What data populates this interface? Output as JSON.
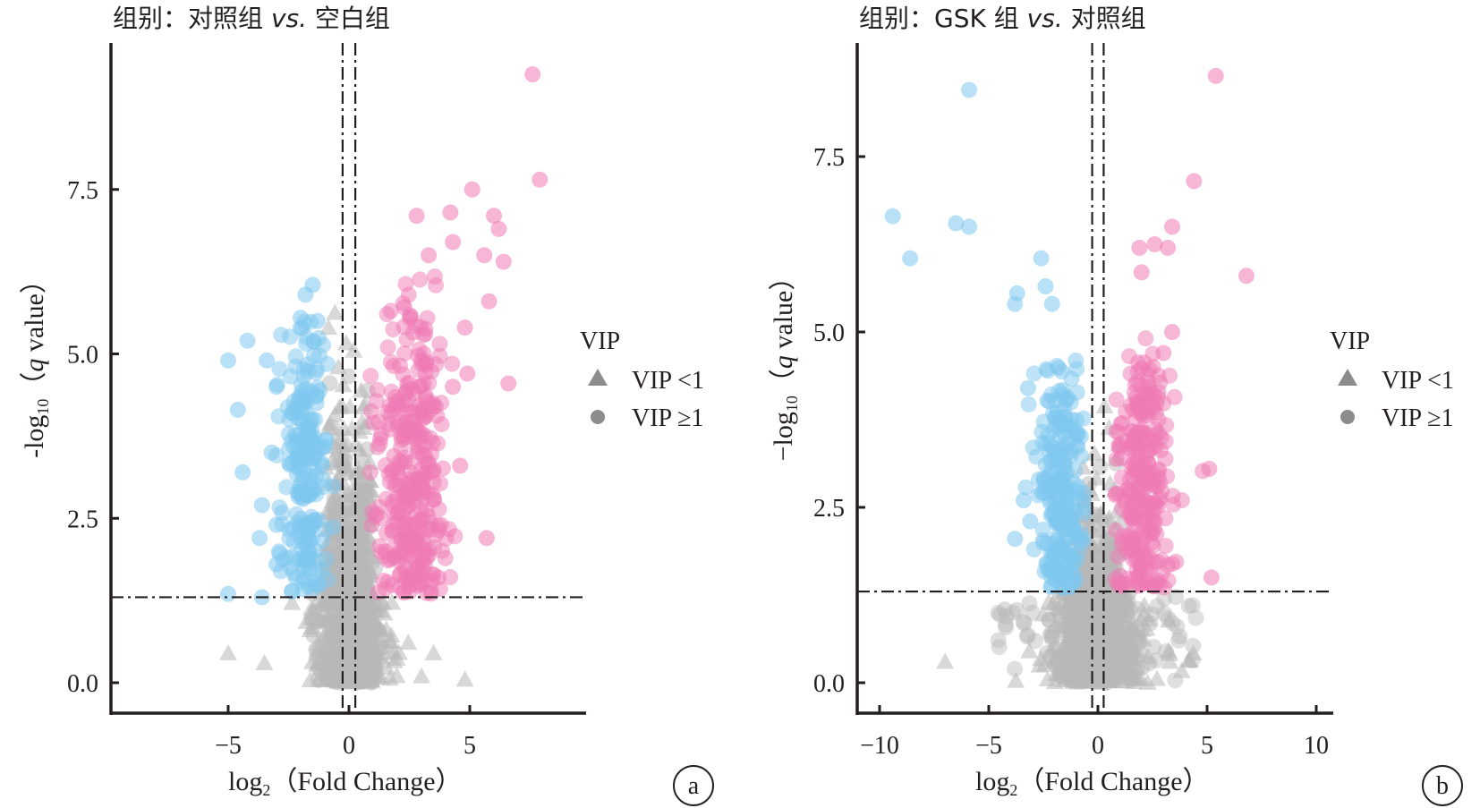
{
  "chart_data": [
    {
      "type": "scatter",
      "panel_label": "a",
      "title_prefix": "组别：",
      "title_group1": "对照组",
      "title_vs": "vs.",
      "title_group2": "空白组",
      "xlabel_main": "log",
      "xlabel_sub": "2",
      "xlabel_rest": "（Fold Change）",
      "ylabel_main": "-log",
      "ylabel_sub": "10",
      "ylabel_q": "q",
      "ylabel_rest": " value",
      "xlim": [
        -9.8,
        9.5
      ],
      "ylim": [
        -0.45,
        9.6
      ],
      "xticks": [
        -5,
        0,
        5
      ],
      "xtick_labels": [
        "−5",
        "0",
        "5"
      ],
      "yticks": [
        0.0,
        2.5,
        5.0,
        7.5
      ],
      "ytick_labels": [
        "0.0",
        "2.5",
        "5.0",
        "7.5"
      ],
      "threshold_lines": {
        "vertical": [
          -0.263,
          0.263
        ],
        "horizontal": 1.3
      },
      "legend": {
        "title": "VIP",
        "items": [
          {
            "label": "VIP <1",
            "shape": "triangle"
          },
          {
            "label": "VIP ≥1",
            "shape": "circle"
          }
        ],
        "placement": "right"
      },
      "colors": {
        "down": "#7ec8f0",
        "up": "#f07ab4",
        "ns": "#b8b8b8"
      },
      "highlight_points": {
        "up": [
          [
            7.6,
            9.25
          ],
          [
            7.9,
            7.65
          ],
          [
            5.1,
            7.5
          ],
          [
            6.0,
            7.1
          ],
          [
            6.2,
            6.9
          ],
          [
            4.2,
            7.15
          ],
          [
            2.8,
            7.1
          ],
          [
            3.3,
            6.5
          ],
          [
            4.3,
            6.7
          ],
          [
            5.6,
            6.5
          ],
          [
            6.4,
            6.4
          ],
          [
            5.8,
            5.8
          ],
          [
            6.6,
            4.55
          ],
          [
            5.7,
            2.2
          ],
          [
            4.8,
            5.4
          ],
          [
            4.3,
            4.5
          ],
          [
            4.6,
            3.3
          ],
          [
            3.7,
            1.6
          ],
          [
            3.8,
            2.4
          ],
          [
            4.9,
            4.7
          ]
        ],
        "down": [
          [
            -5.0,
            1.35
          ],
          [
            -5.0,
            4.9
          ],
          [
            -4.6,
            4.15
          ],
          [
            -4.4,
            3.2
          ],
          [
            -3.7,
            2.2
          ],
          [
            -3.6,
            2.7
          ],
          [
            -3.2,
            3.5
          ],
          [
            -3.4,
            4.9
          ],
          [
            -4.2,
            5.2
          ],
          [
            -3.0,
            4.5
          ],
          [
            -1.5,
            6.05
          ],
          [
            -1.8,
            5.9
          ],
          [
            -2.0,
            5.55
          ],
          [
            -1.3,
            5.5
          ],
          [
            -3.0,
            2.4
          ],
          [
            -3.0,
            1.8
          ],
          [
            -3.6,
            1.3
          ],
          [
            -2.2,
            1.6
          ]
        ]
      },
      "cluster_summary": {
        "up": {
          "x_range": [
            1.0,
            4.0
          ],
          "y_range": [
            1.3,
            6.4
          ],
          "approx_count": 320
        },
        "down": {
          "x_range": [
            -2.8,
            -0.8
          ],
          "y_range": [
            1.3,
            6.0
          ],
          "approx_count": 220
        },
        "ns": {
          "x_range": [
            -2.2,
            2.2
          ],
          "y_range": [
            0.0,
            6.0
          ],
          "approx_count": 900
        }
      }
    },
    {
      "type": "scatter",
      "panel_label": "b",
      "title_prefix": "组别：",
      "title_group1": "GSK 组",
      "title_vs": "vs.",
      "title_group2": "对照组",
      "xlabel_main": "log",
      "xlabel_sub": "2",
      "xlabel_rest": "（Fold Change）",
      "ylabel_main": "−log",
      "ylabel_sub": "10",
      "ylabel_q": "q",
      "ylabel_rest": " value",
      "xlim": [
        -11,
        11.2
      ],
      "ylim": [
        -0.4,
        9.1
      ],
      "xticks": [
        -10,
        -5,
        0,
        5,
        10
      ],
      "xtick_labels": [
        "−10",
        "−5",
        "0",
        "5",
        "10"
      ],
      "yticks": [
        0.0,
        2.5,
        5.0,
        7.5
      ],
      "ytick_labels": [
        "0.0",
        "2.5",
        "5.0",
        "7.5"
      ],
      "threshold_lines": {
        "vertical": [
          -0.263,
          0.263
        ],
        "horizontal": 1.3
      },
      "legend": {
        "title": "VIP",
        "items": [
          {
            "label": "VIP <1",
            "shape": "triangle"
          },
          {
            "label": "VIP ≥1",
            "shape": "circle"
          }
        ],
        "placement": "right"
      },
      "colors": {
        "down": "#7ec8f0",
        "up": "#f07ab4",
        "ns": "#b8b8b8"
      },
      "highlight_points": {
        "up": [
          [
            5.4,
            8.65
          ],
          [
            4.4,
            7.15
          ],
          [
            6.8,
            5.8
          ],
          [
            3.4,
            6.5
          ],
          [
            2.6,
            6.25
          ],
          [
            3.2,
            6.2
          ],
          [
            1.9,
            6.2
          ],
          [
            2.0,
            5.85
          ],
          [
            3.4,
            5.0
          ],
          [
            5.1,
            3.05
          ],
          [
            5.2,
            1.5
          ],
          [
            3.0,
            4.7
          ]
        ],
        "down": [
          [
            -9.4,
            6.65
          ],
          [
            -8.6,
            6.05
          ],
          [
            -6.5,
            6.55
          ],
          [
            -5.9,
            6.5
          ],
          [
            -5.9,
            8.45
          ],
          [
            -2.6,
            6.05
          ],
          [
            -2.4,
            5.65
          ],
          [
            -3.7,
            5.55
          ],
          [
            -3.8,
            5.4
          ],
          [
            -2.1,
            5.4
          ],
          [
            -3.2,
            4.2
          ],
          [
            -3.8,
            2.05
          ],
          [
            -3.4,
            2.6
          ],
          [
            -3.1,
            2.3
          ]
        ]
      },
      "cluster_summary": {
        "up": {
          "x_range": [
            0.7,
            3.5
          ],
          "y_range": [
            1.3,
            5.0
          ],
          "approx_count": 260
        },
        "down": {
          "x_range": [
            -3.0,
            -0.4
          ],
          "y_range": [
            1.3,
            5.0
          ],
          "approx_count": 230
        },
        "ns": {
          "x_range": [
            -4.5,
            4.8
          ],
          "y_range": [
            0.0,
            4.3
          ],
          "approx_count": 900
        }
      }
    }
  ]
}
